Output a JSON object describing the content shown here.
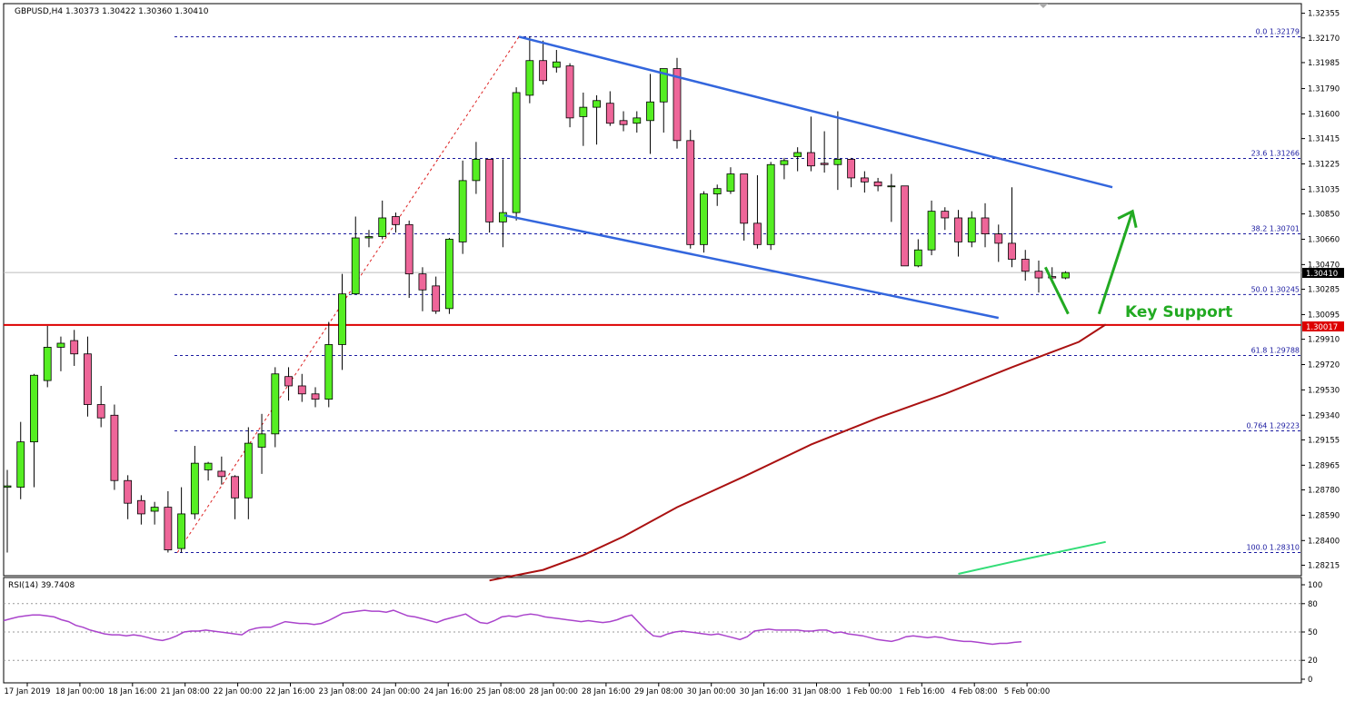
{
  "chart_data": [
    {
      "type": "candlestick",
      "title": "GBPUSD,H4  1.30373 1.30422 1.30360 1.30410",
      "symbol": "GBPUSD",
      "timeframe": "H4",
      "ylim": [
        1.2815,
        1.324
      ],
      "y_ticks": [
        "1.32355",
        "1.32170",
        "1.31985",
        "1.31790",
        "1.31600",
        "1.31415",
        "1.31225",
        "1.31035",
        "1.30850",
        "1.30660",
        "1.30470",
        "1.30285",
        "1.30095",
        "1.29910",
        "1.29720",
        "1.29530",
        "1.29340",
        "1.29155",
        "1.28965",
        "1.28780",
        "1.28590",
        "1.28400",
        "1.28215"
      ],
      "x_labels": [
        "17 Jan 2019",
        "18 Jan 00:00",
        "18 Jan 16:00",
        "21 Jan 08:00",
        "22 Jan 00:00",
        "22 Jan 16:00",
        "23 Jan 08:00",
        "24 Jan 00:00",
        "24 Jan 16:00",
        "25 Jan 08:00",
        "28 Jan 00:00",
        "28 Jan 16:00",
        "29 Jan 08:00",
        "30 Jan 00:00",
        "30 Jan 16:00",
        "31 Jan 08:00",
        "1 Feb 00:00",
        "1 Feb 16:00",
        "4 Feb 08:00",
        "5 Feb 00:00"
      ],
      "candles": [
        {
          "o": 1.288,
          "h": 1.2893,
          "l": 1.2831,
          "c": 1.2881
        },
        {
          "o": 1.288,
          "h": 1.2929,
          "l": 1.2871,
          "c": 1.2914
        },
        {
          "o": 1.2914,
          "h": 1.2965,
          "l": 1.288,
          "c": 1.2964
        },
        {
          "o": 1.296,
          "h": 1.3001,
          "l": 1.2955,
          "c": 1.2985
        },
        {
          "o": 1.2985,
          "h": 1.2993,
          "l": 1.2967,
          "c": 1.2988
        },
        {
          "o": 1.299,
          "h": 1.2998,
          "l": 1.2971,
          "c": 1.298
        },
        {
          "o": 1.298,
          "h": 1.2993,
          "l": 1.2933,
          "c": 1.2942
        },
        {
          "o": 1.2942,
          "h": 1.2956,
          "l": 1.2925,
          "c": 1.2932
        },
        {
          "o": 1.2934,
          "h": 1.2942,
          "l": 1.2878,
          "c": 1.2885
        },
        {
          "o": 1.2885,
          "h": 1.2889,
          "l": 1.2856,
          "c": 1.2868
        },
        {
          "o": 1.287,
          "h": 1.2874,
          "l": 1.2852,
          "c": 1.286
        },
        {
          "o": 1.2862,
          "h": 1.2869,
          "l": 1.2852,
          "c": 1.2865
        },
        {
          "o": 1.2865,
          "h": 1.2877,
          "l": 1.2831,
          "c": 1.2833
        },
        {
          "o": 1.2834,
          "h": 1.288,
          "l": 1.2831,
          "c": 1.286
        },
        {
          "o": 1.286,
          "h": 1.2911,
          "l": 1.2856,
          "c": 1.2898
        },
        {
          "o": 1.2893,
          "h": 1.2899,
          "l": 1.2885,
          "c": 1.2898
        },
        {
          "o": 1.2892,
          "h": 1.2903,
          "l": 1.2882,
          "c": 1.2888
        },
        {
          "o": 1.2888,
          "h": 1.2889,
          "l": 1.2856,
          "c": 1.2872
        },
        {
          "o": 1.2872,
          "h": 1.2925,
          "l": 1.2856,
          "c": 1.2913
        },
        {
          "o": 1.291,
          "h": 1.2935,
          "l": 1.289,
          "c": 1.292
        },
        {
          "o": 1.292,
          "h": 1.297,
          "l": 1.291,
          "c": 1.2965
        },
        {
          "o": 1.2963,
          "h": 1.297,
          "l": 1.2945,
          "c": 1.2956
        },
        {
          "o": 1.2956,
          "h": 1.2965,
          "l": 1.2944,
          "c": 1.295
        },
        {
          "o": 1.295,
          "h": 1.2955,
          "l": 1.294,
          "c": 1.2946
        },
        {
          "o": 1.2946,
          "h": 1.3004,
          "l": 1.294,
          "c": 1.2987
        },
        {
          "o": 1.2987,
          "h": 1.304,
          "l": 1.2968,
          "c": 1.3025
        },
        {
          "o": 1.3025,
          "h": 1.3083,
          "l": 1.3025,
          "c": 1.3067
        },
        {
          "o": 1.3067,
          "h": 1.3073,
          "l": 1.306,
          "c": 1.3068
        },
        {
          "o": 1.3068,
          "h": 1.3095,
          "l": 1.3066,
          "c": 1.3082
        },
        {
          "o": 1.3083,
          "h": 1.3086,
          "l": 1.3071,
          "c": 1.3077
        },
        {
          "o": 1.3077,
          "h": 1.308,
          "l": 1.3022,
          "c": 1.304
        },
        {
          "o": 1.304,
          "h": 1.3045,
          "l": 1.3012,
          "c": 1.3028
        },
        {
          "o": 1.3031,
          "h": 1.3038,
          "l": 1.301,
          "c": 1.3012
        },
        {
          "o": 1.3014,
          "h": 1.3067,
          "l": 1.301,
          "c": 1.3066
        },
        {
          "o": 1.3064,
          "h": 1.3125,
          "l": 1.3055,
          "c": 1.311
        },
        {
          "o": 1.311,
          "h": 1.3139,
          "l": 1.31,
          "c": 1.3126
        },
        {
          "o": 1.3126,
          "h": 1.3126,
          "l": 1.3071,
          "c": 1.3079
        },
        {
          "o": 1.3079,
          "h": 1.3126,
          "l": 1.306,
          "c": 1.3086
        },
        {
          "o": 1.3086,
          "h": 1.318,
          "l": 1.308,
          "c": 1.3176
        },
        {
          "o": 1.3174,
          "h": 1.3218,
          "l": 1.3168,
          "c": 1.32
        },
        {
          "o": 1.32,
          "h": 1.3215,
          "l": 1.3182,
          "c": 1.3185
        },
        {
          "o": 1.3195,
          "h": 1.3208,
          "l": 1.3191,
          "c": 1.3199
        },
        {
          "o": 1.3196,
          "h": 1.3198,
          "l": 1.315,
          "c": 1.3157
        },
        {
          "o": 1.3158,
          "h": 1.3176,
          "l": 1.3136,
          "c": 1.3165
        },
        {
          "o": 1.3165,
          "h": 1.3174,
          "l": 1.3137,
          "c": 1.317
        },
        {
          "o": 1.3168,
          "h": 1.3177,
          "l": 1.3151,
          "c": 1.3153
        },
        {
          "o": 1.3155,
          "h": 1.3162,
          "l": 1.3147,
          "c": 1.3152
        },
        {
          "o": 1.3153,
          "h": 1.3162,
          "l": 1.3146,
          "c": 1.3157
        },
        {
          "o": 1.3155,
          "h": 1.319,
          "l": 1.313,
          "c": 1.3169
        },
        {
          "o": 1.3169,
          "h": 1.3194,
          "l": 1.3146,
          "c": 1.3194
        },
        {
          "o": 1.3194,
          "h": 1.3202,
          "l": 1.3134,
          "c": 1.314
        },
        {
          "o": 1.314,
          "h": 1.3148,
          "l": 1.3059,
          "c": 1.3062
        },
        {
          "o": 1.3062,
          "h": 1.3102,
          "l": 1.3056,
          "c": 1.31
        },
        {
          "o": 1.31,
          "h": 1.3107,
          "l": 1.3091,
          "c": 1.3104
        },
        {
          "o": 1.3102,
          "h": 1.312,
          "l": 1.31,
          "c": 1.3115
        },
        {
          "o": 1.3115,
          "h": 1.3115,
          "l": 1.3065,
          "c": 1.3078
        },
        {
          "o": 1.3078,
          "h": 1.3114,
          "l": 1.3059,
          "c": 1.3062
        },
        {
          "o": 1.3062,
          "h": 1.3124,
          "l": 1.3058,
          "c": 1.3122
        },
        {
          "o": 1.3122,
          "h": 1.3127,
          "l": 1.3111,
          "c": 1.3125
        },
        {
          "o": 1.3128,
          "h": 1.3135,
          "l": 1.3117,
          "c": 1.3131
        },
        {
          "o": 1.3131,
          "h": 1.3158,
          "l": 1.3117,
          "c": 1.3121
        },
        {
          "o": 1.3123,
          "h": 1.3147,
          "l": 1.3116,
          "c": 1.3122
        },
        {
          "o": 1.3122,
          "h": 1.3162,
          "l": 1.3103,
          "c": 1.3126
        },
        {
          "o": 1.3126,
          "h": 1.3127,
          "l": 1.3105,
          "c": 1.3112
        },
        {
          "o": 1.3112,
          "h": 1.3117,
          "l": 1.3101,
          "c": 1.3109
        },
        {
          "o": 1.3109,
          "h": 1.3112,
          "l": 1.3102,
          "c": 1.3106
        },
        {
          "o": 1.3106,
          "h": 1.3115,
          "l": 1.3079,
          "c": 1.3106
        },
        {
          "o": 1.3106,
          "h": 1.3106,
          "l": 1.3046,
          "c": 1.3046
        },
        {
          "o": 1.3046,
          "h": 1.3066,
          "l": 1.3045,
          "c": 1.3058
        },
        {
          "o": 1.3058,
          "h": 1.3095,
          "l": 1.3054,
          "c": 1.3087
        },
        {
          "o": 1.3087,
          "h": 1.309,
          "l": 1.3073,
          "c": 1.3082
        },
        {
          "o": 1.3082,
          "h": 1.3088,
          "l": 1.3053,
          "c": 1.3064
        },
        {
          "o": 1.3064,
          "h": 1.3087,
          "l": 1.306,
          "c": 1.3082
        },
        {
          "o": 1.3082,
          "h": 1.3093,
          "l": 1.306,
          "c": 1.307
        },
        {
          "o": 1.307,
          "h": 1.3077,
          "l": 1.3049,
          "c": 1.3063
        },
        {
          "o": 1.3063,
          "h": 1.3105,
          "l": 1.3045,
          "c": 1.3051
        },
        {
          "o": 1.3051,
          "h": 1.3058,
          "l": 1.3035,
          "c": 1.3042
        },
        {
          "o": 1.3042,
          "h": 1.305,
          "l": 1.3026,
          "c": 1.3037
        },
        {
          "o": 1.3038,
          "h": 1.3045,
          "l": 1.3033,
          "c": 1.3037
        },
        {
          "o": 1.3037,
          "h": 1.3042,
          "l": 1.3036,
          "c": 1.3041
        }
      ],
      "levels": [
        {
          "label": "0.0  1.32179",
          "value": 1.32179
        },
        {
          "label": "23.6  1.31266",
          "value": 1.31266
        },
        {
          "label": "38.2  1.30701",
          "value": 1.30701
        },
        {
          "label": "50.0  1.30245",
          "value": 1.30245
        },
        {
          "label": "61.8  1.29788",
          "value": 1.29788
        },
        {
          "label": "0.764  1.29223",
          "value": 1.29223
        },
        {
          "label": "100.0  1.28310",
          "value": 1.2831
        }
      ],
      "current_price": "1.30410",
      "support_price": "1.30017",
      "annotation": "Key Support",
      "colors": {
        "bull": "#55ee22",
        "bear": "#ee6699",
        "channel": "#3366dd",
        "fib": "#1a1aa0",
        "support": "#dd0000",
        "ma": "#aa1111",
        "ma2": "#33dd77",
        "arrow": "#22aa22",
        "zigzag": "#dd2222"
      }
    },
    {
      "type": "line",
      "title": "RSI(14) 39.7408",
      "ylim": [
        0,
        100
      ],
      "y_ticks": [
        "100",
        "80",
        "50",
        "20",
        "0"
      ],
      "levels": [
        80,
        50,
        20
      ],
      "values": [
        62,
        64,
        66,
        67,
        68,
        68,
        67,
        66,
        63,
        61,
        57,
        55,
        52,
        50,
        48,
        47,
        47,
        46,
        47,
        46,
        44,
        42,
        41,
        43,
        46,
        50,
        51,
        51,
        52,
        51,
        50,
        49,
        48,
        47,
        52,
        54,
        55,
        55,
        58,
        61,
        60,
        59,
        59,
        58,
        59,
        62,
        66,
        70,
        71,
        72,
        73,
        72,
        72,
        71,
        73,
        70,
        67,
        66,
        64,
        62,
        60,
        63,
        65,
        67,
        69,
        64,
        60,
        59,
        62,
        66,
        67,
        66,
        68,
        69,
        68,
        66,
        65,
        64,
        63,
        62,
        61,
        62,
        61,
        60,
        61,
        63,
        66,
        68,
        60,
        52,
        46,
        45,
        48,
        50,
        51,
        50,
        49,
        48,
        47,
        48,
        46,
        44,
        42,
        45,
        51,
        52,
        53,
        52,
        52,
        52,
        52,
        51,
        51,
        52,
        52,
        49,
        50,
        48,
        47,
        46,
        44,
        42,
        41,
        40,
        42,
        45,
        46,
        45,
        44,
        45,
        44,
        42,
        41,
        40,
        40,
        39,
        38,
        37,
        38,
        38,
        39,
        39.74
      ],
      "color": "#aa44cc"
    }
  ]
}
